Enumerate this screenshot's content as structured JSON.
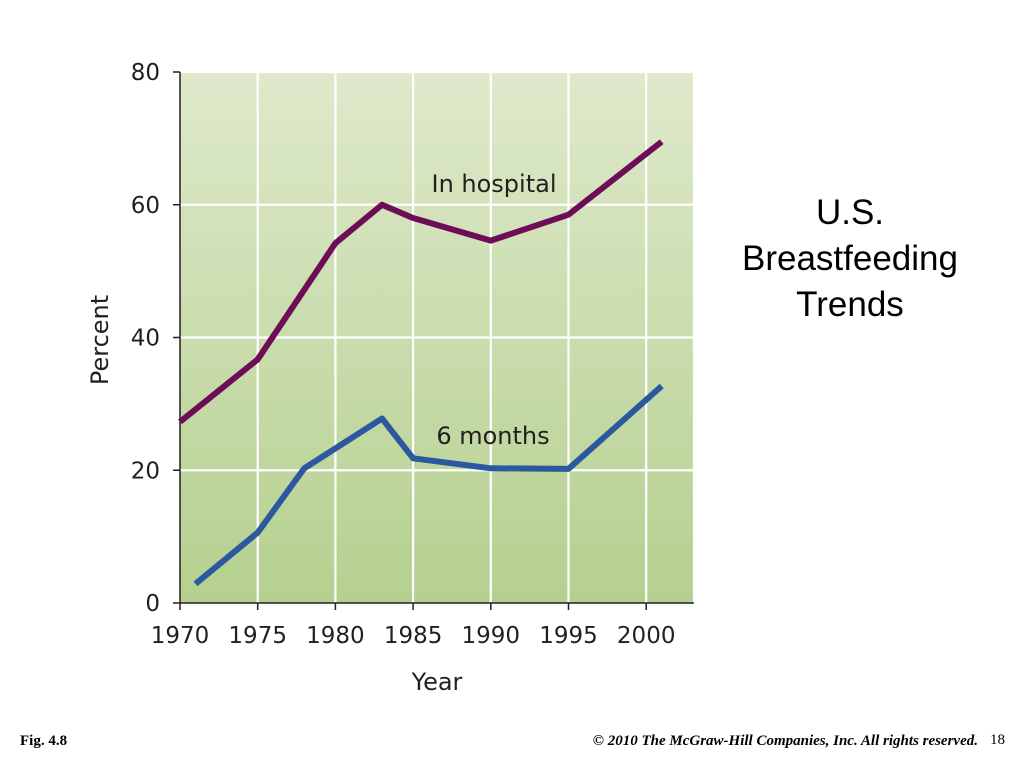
{
  "slide": {
    "title_lines": [
      "U.S.",
      "Breastfeeding",
      "Trends"
    ],
    "figure_label": "Fig. 4.8",
    "copyright": "© 2010 The McGraw-Hill Companies, Inc. All rights reserved.",
    "page_number": "18"
  },
  "chart_data": {
    "type": "line",
    "title": "",
    "xlabel": "Year",
    "ylabel": "Percent",
    "xlim": [
      1970,
      2003
    ],
    "ylim": [
      0,
      80
    ],
    "x_ticks": [
      "1970",
      "1975",
      "1980",
      "1985",
      "1990",
      "1995",
      "2000"
    ],
    "y_ticks": [
      "0",
      "20",
      "40",
      "60",
      "80"
    ],
    "grid": true,
    "legend": "none (series labeled directly on lines)",
    "background_colors": [
      "#dfe9cb",
      "#b4d08f"
    ],
    "series": [
      {
        "name": "In hospital",
        "color": "#6e0d57",
        "points": [
          [
            1970,
            27.3
          ],
          [
            1975,
            36.7
          ],
          [
            1980,
            54.2
          ],
          [
            1983,
            60.0
          ],
          [
            1985,
            58.0
          ],
          [
            1990,
            54.6
          ],
          [
            1995,
            58.5
          ],
          [
            2001,
            69.5
          ]
        ]
      },
      {
        "name": "6 months",
        "color": "#2c58a0",
        "points": [
          [
            1971,
            2.9
          ],
          [
            1975,
            10.6
          ],
          [
            1978,
            20.3
          ],
          [
            1983,
            27.8
          ],
          [
            1985,
            21.8
          ],
          [
            1990,
            20.3
          ],
          [
            1995,
            20.2
          ],
          [
            2001,
            32.7
          ]
        ]
      }
    ]
  }
}
